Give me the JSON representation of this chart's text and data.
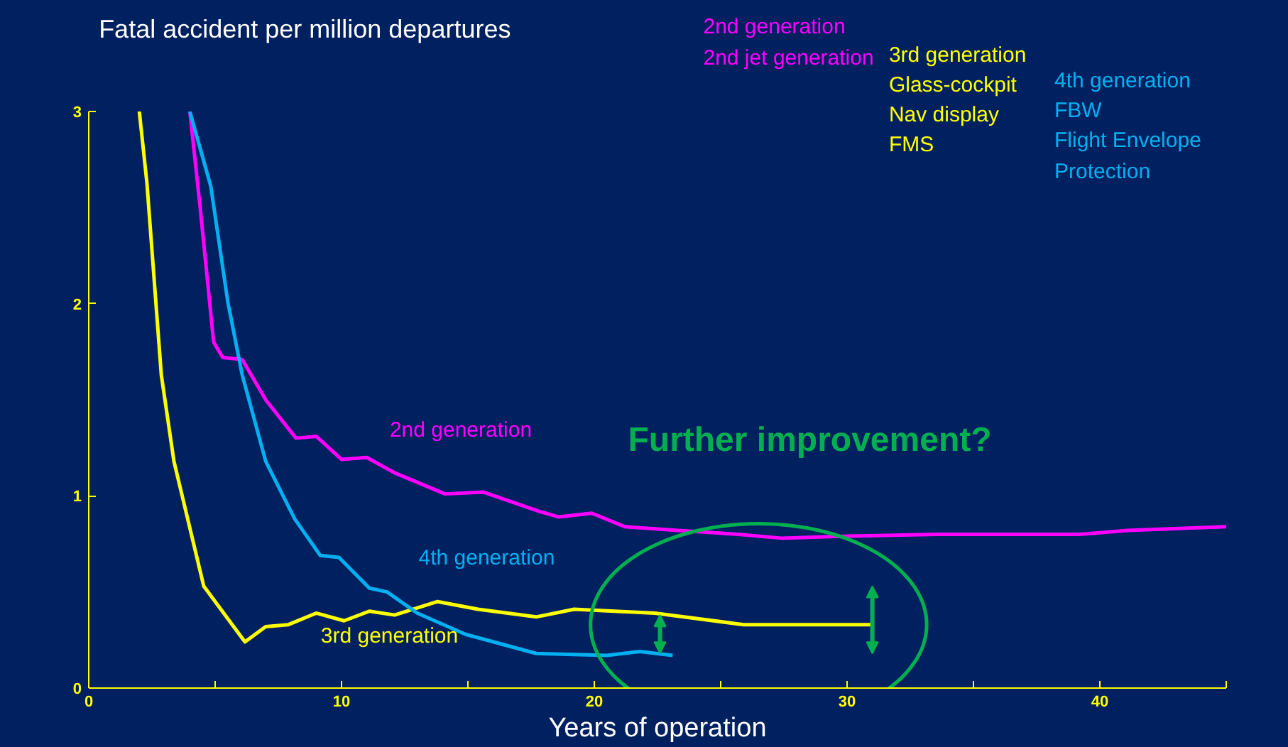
{
  "chart_data": {
    "type": "line",
    "title": "Fatal accident per million departures",
    "xlabel": "Years of operation",
    "xlim": [
      0,
      45
    ],
    "ylim": [
      0,
      3
    ],
    "xticks": [
      0,
      {
        "value": 5,
        "label": null
      },
      10,
      {
        "value": 15,
        "label": null
      },
      20,
      {
        "value": 25,
        "label": null
      },
      30,
      {
        "value": 35,
        "label": null
      },
      40,
      {
        "value": 45,
        "label": null
      }
    ],
    "yticks": [
      0,
      1,
      2,
      3
    ],
    "grid": false,
    "line_style": "solid",
    "series": [
      {
        "color": "#ff00ff",
        "x": [
          4.0,
          4.4,
          4.94,
          5.3,
          6.07,
          7.0,
          8.2,
          9.0,
          10.0,
          11.0,
          12.1,
          14.1,
          15.6,
          17.8,
          18.6,
          19.9,
          21.2,
          23.3,
          25.7,
          27.4,
          29.8,
          33.6,
          39.2,
          41.1,
          45.0
        ],
        "values": [
          3,
          2.51,
          1.8,
          1.72,
          1.71,
          1.5,
          1.3,
          1.31,
          1.19,
          1.2,
          1.12,
          1.01,
          1.02,
          0.92,
          0.89,
          0.91,
          0.84,
          0.82,
          0.8,
          0.78,
          0.79,
          0.8,
          0.8,
          0.82,
          0.84
        ]
      },
      {
        "color": "#ffff00",
        "x": [
          2.0,
          2.3,
          2.87,
          3.37,
          4.55,
          6.18,
          7.0,
          7.9,
          9.0,
          10.1,
          11.1,
          12.1,
          13.8,
          15.4,
          17.7,
          19.2,
          22.4,
          25.9,
          31.0
        ],
        "values": [
          3,
          2.63,
          1.63,
          1.18,
          0.53,
          0.24,
          0.32,
          0.33,
          0.39,
          0.35,
          0.4,
          0.38,
          0.45,
          0.41,
          0.37,
          0.41,
          0.39,
          0.33,
          0.33
        ]
      },
      {
        "color": "#00b0f0",
        "x": [
          4.0,
          4.83,
          5.5,
          6.07,
          7.0,
          8.15,
          9.16,
          9.9,
          11.1,
          11.8,
          13.0,
          14.9,
          17.7,
          20.5,
          21.8,
          23.1
        ],
        "values": [
          3,
          2.61,
          2.01,
          1.63,
          1.18,
          0.88,
          0.69,
          0.68,
          0.52,
          0.5,
          0.39,
          0.28,
          0.18,
          0.17,
          0.19,
          0.17
        ]
      }
    ],
    "annotations": [
      "2nd generation",
      "2nd jet generation",
      "3rd generation",
      "Glass-cockpit",
      "Nav display",
      "FMS",
      "4th generation",
      "FBW",
      "Flight Envelope",
      "Protection",
      "Further improvement?",
      "2nd generation",
      "4th generation",
      "3rd generation"
    ]
  }
}
